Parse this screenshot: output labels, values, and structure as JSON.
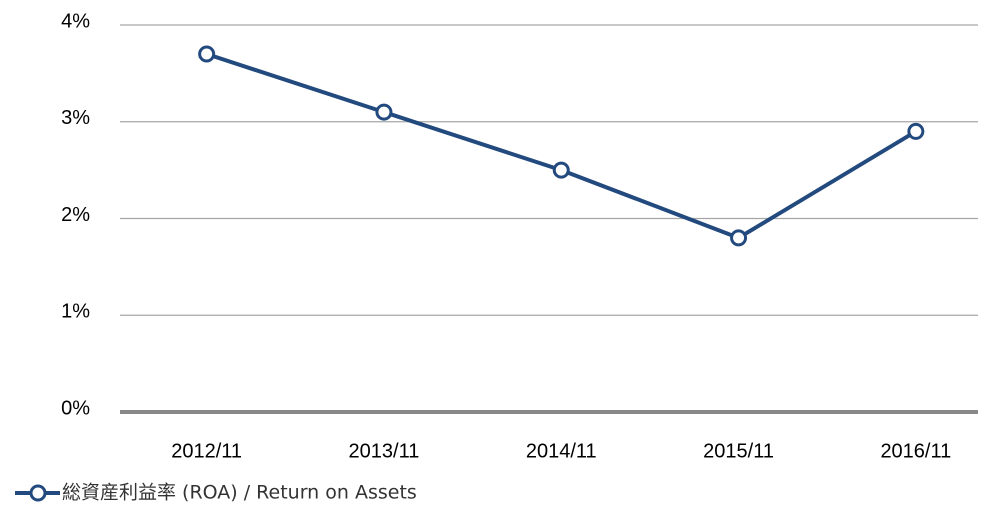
{
  "chart_data": {
    "type": "line",
    "categories": [
      "2012/11",
      "2013/11",
      "2014/11",
      "2015/11",
      "2016/11"
    ],
    "series": [
      {
        "name": "総資産利益率 (ROA) / Return on Assets",
        "color": "#234a7e",
        "values": [
          3.7,
          3.1,
          2.5,
          1.8,
          2.9
        ]
      }
    ],
    "ylim": [
      0,
      4
    ],
    "yticks": [
      {
        "value": 0,
        "label": "0%"
      },
      {
        "value": 1,
        "label": "1%"
      },
      {
        "value": 2,
        "label": "2%"
      },
      {
        "value": 3,
        "label": "3%"
      },
      {
        "value": 4,
        "label": "4%"
      }
    ],
    "grid": true,
    "legend": "bottom-left"
  }
}
